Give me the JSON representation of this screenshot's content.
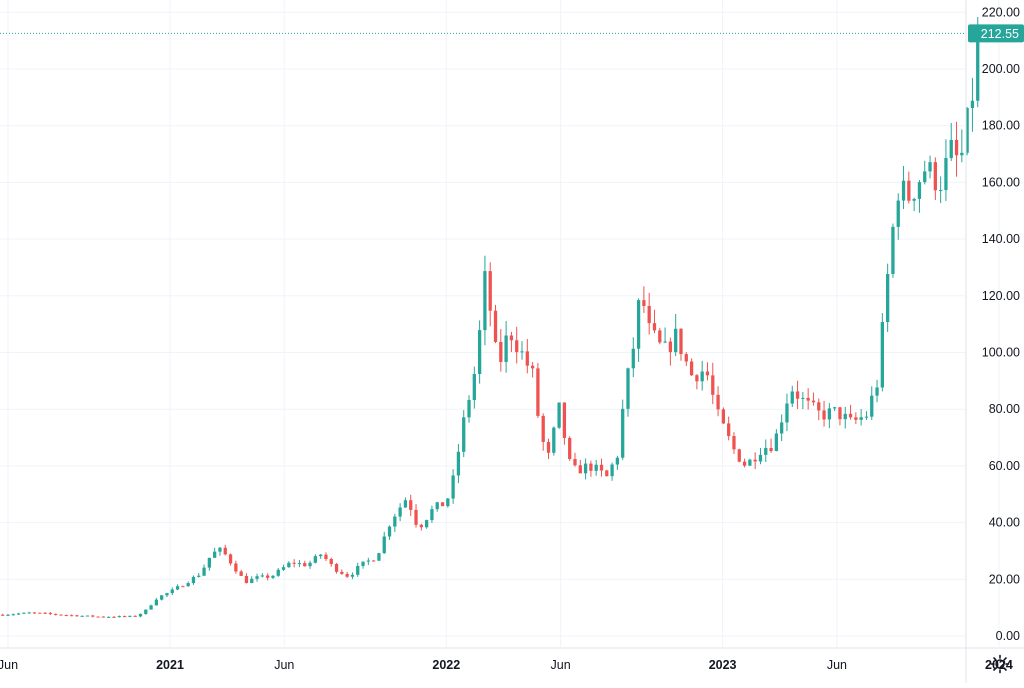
{
  "chart_data": {
    "type": "candlestick",
    "y_ticks": [
      "0.00",
      "20.00",
      "40.00",
      "60.00",
      "80.00",
      "100.00",
      "120.00",
      "140.00",
      "160.00",
      "180.00",
      "200.00",
      "220.00"
    ],
    "y_range": [
      0,
      220
    ],
    "x_tick_labels": [
      {
        "date": "2020-06-01",
        "label": "Jun",
        "bold": false
      },
      {
        "date": "2021-01-01",
        "label": "2021",
        "bold": true
      },
      {
        "date": "2021-06-01",
        "label": "Jun",
        "bold": false
      },
      {
        "date": "2022-01-01",
        "label": "2022",
        "bold": true
      },
      {
        "date": "2022-06-01",
        "label": "Jun",
        "bold": false
      },
      {
        "date": "2023-01-01",
        "label": "2023",
        "bold": true
      },
      {
        "date": "2023-06-01",
        "label": "Jun",
        "bold": false
      },
      {
        "date": "2024-01-01",
        "label": "2024",
        "bold": true
      }
    ],
    "x_range": [
      "2020-05-25",
      "2024-03-01"
    ],
    "grid": true,
    "last_price_label": "212.55",
    "last_price": 212.55,
    "up_color": "#26a69a",
    "down_color": "#ef5350",
    "interval": "1W",
    "anchors": [
      [
        "2020-05-25",
        7.5
      ],
      [
        "2020-07-01",
        8.2
      ],
      [
        "2020-08-15",
        7.4
      ],
      [
        "2020-10-01",
        6.8
      ],
      [
        "2020-11-15",
        6.9
      ],
      [
        "2020-11-28",
        8.5
      ],
      [
        "2020-12-15",
        13.5
      ],
      [
        "2021-01-01",
        15.5
      ],
      [
        "2021-01-20",
        18.5
      ],
      [
        "2021-02-10",
        22.0
      ],
      [
        "2021-02-25",
        29.0
      ],
      [
        "2021-03-10",
        30.5
      ],
      [
        "2021-03-25",
        25.0
      ],
      [
        "2021-04-10",
        19.0
      ],
      [
        "2021-04-25",
        20.5
      ],
      [
        "2021-05-15",
        21.0
      ],
      [
        "2021-06-10",
        26.0
      ],
      [
        "2021-07-01",
        25.0
      ],
      [
        "2021-07-20",
        29.0
      ],
      [
        "2021-08-05",
        24.0
      ],
      [
        "2021-08-25",
        21.0
      ],
      [
        "2021-09-10",
        25.0
      ],
      [
        "2021-10-01",
        28.0
      ],
      [
        "2021-10-20",
        41.0
      ],
      [
        "2021-11-10",
        49.0
      ],
      [
        "2021-11-25",
        38.0
      ],
      [
        "2021-12-15",
        45.0
      ],
      [
        "2022-01-01",
        47.0
      ],
      [
        "2022-01-10",
        55.0
      ],
      [
        "2022-01-25",
        77.0
      ],
      [
        "2022-02-10",
        96.0
      ],
      [
        "2022-02-22",
        128.0
      ],
      [
        "2022-03-10",
        94.0
      ],
      [
        "2022-03-25",
        108.0
      ],
      [
        "2022-04-10",
        100.0
      ],
      [
        "2022-04-25",
        92.0
      ],
      [
        "2022-05-05",
        72.0
      ],
      [
        "2022-05-15",
        62.0
      ],
      [
        "2022-05-30",
        80.0
      ],
      [
        "2022-06-15",
        58.0
      ],
      [
        "2022-07-10",
        60.0
      ],
      [
        "2022-08-01",
        56.0
      ],
      [
        "2022-08-15",
        64.0
      ],
      [
        "2022-08-25",
        86.0
      ],
      [
        "2022-09-05",
        102.0
      ],
      [
        "2022-09-15",
        122.0
      ],
      [
        "2022-09-25",
        108.0
      ],
      [
        "2022-10-15",
        100.0
      ],
      [
        "2022-11-01",
        106.0
      ],
      [
        "2022-11-20",
        92.0
      ],
      [
        "2022-12-10",
        94.0
      ],
      [
        "2022-12-25",
        78.0
      ],
      [
        "2023-01-15",
        66.0
      ],
      [
        "2023-02-01",
        60.0
      ],
      [
        "2023-02-20",
        66.0
      ],
      [
        "2023-03-10",
        68.0
      ],
      [
        "2023-04-01",
        88.0
      ],
      [
        "2023-04-20",
        82.0
      ],
      [
        "2023-05-10",
        78.0
      ],
      [
        "2023-06-01",
        79.0
      ],
      [
        "2023-06-20",
        75.0
      ],
      [
        "2023-07-10",
        78.0
      ],
      [
        "2023-07-25",
        90.0
      ],
      [
        "2023-08-05",
        122.0
      ],
      [
        "2023-08-20",
        158.0
      ],
      [
        "2023-09-05",
        155.0
      ],
      [
        "2023-09-25",
        165.0
      ],
      [
        "2023-10-15",
        160.0
      ],
      [
        "2023-11-01",
        172.0
      ],
      [
        "2023-11-10",
        165.0
      ],
      [
        "2023-11-20",
        180.0
      ],
      [
        "2023-11-28",
        193.0
      ],
      [
        "2023-12-05",
        212.55
      ]
    ]
  }
}
